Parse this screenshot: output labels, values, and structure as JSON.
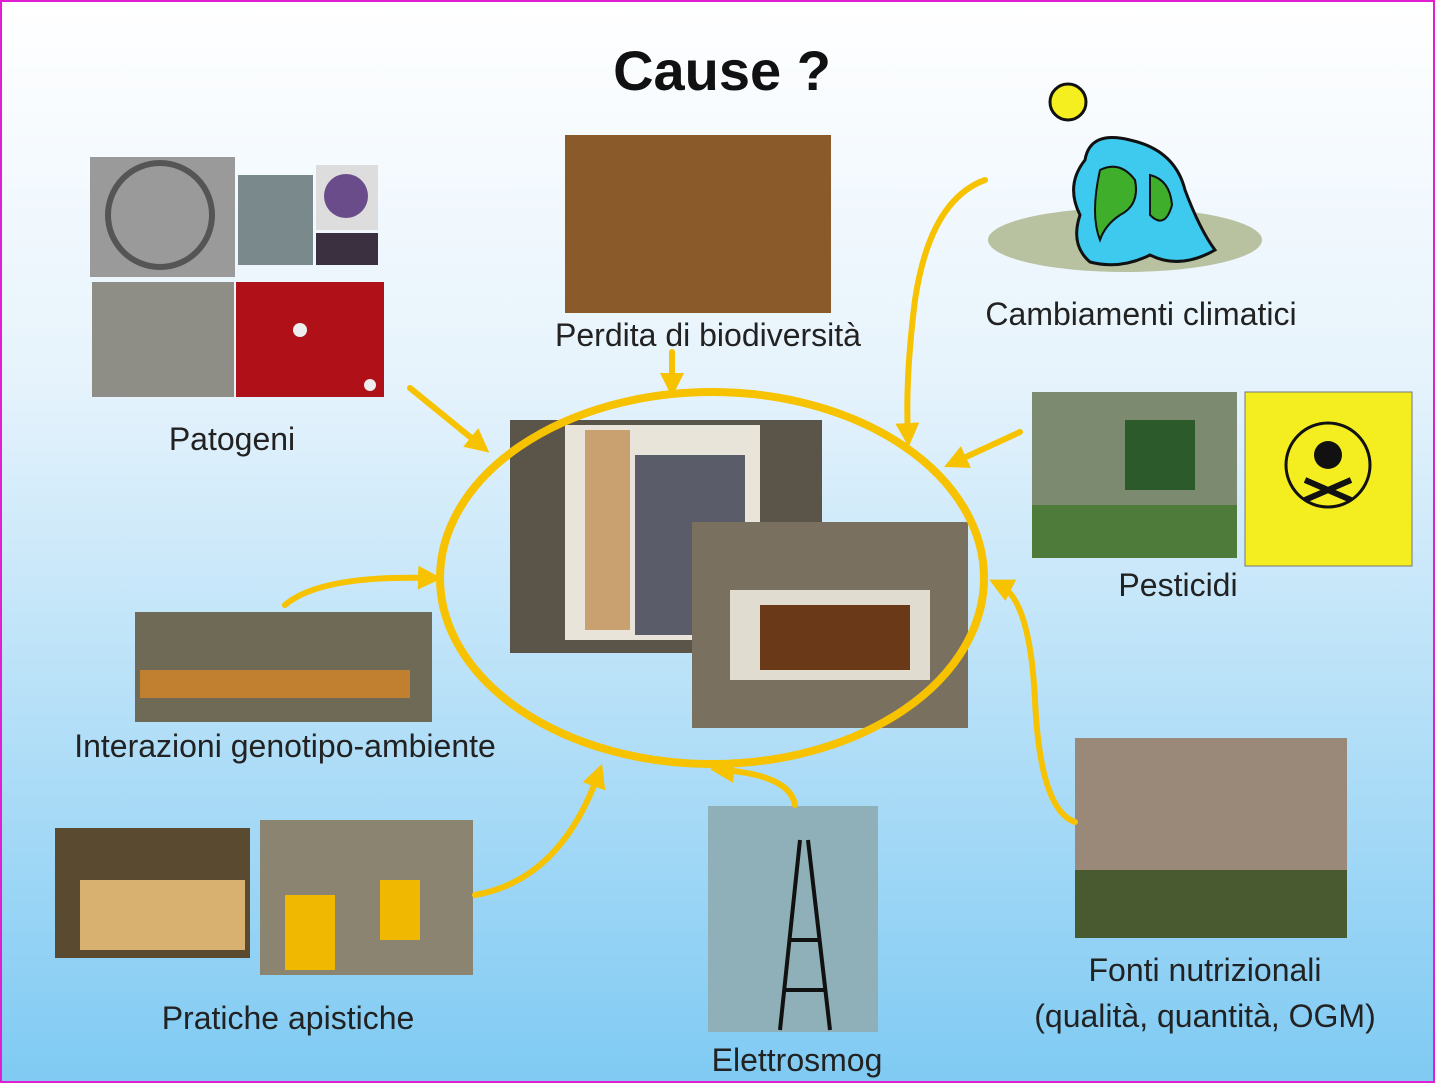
{
  "title": "Cause ?",
  "nodes": [
    {
      "lines": [
        "Patogeni"
      ]
    },
    {
      "lines": [
        "Perdita di biodiversità"
      ]
    },
    {
      "lines": [
        "Cambiamenti climatici"
      ]
    },
    {
      "lines": [
        "Pesticidi"
      ]
    },
    {
      "lines": [
        "Interazioni genotipo-ambiente"
      ]
    },
    {
      "lines": [
        "Pratiche apistiche"
      ]
    },
    {
      "lines": [
        "Elettrosmog"
      ]
    },
    {
      "lines": [
        "Fonti nutrizionali",
        "(qualità, quantità, OGM)"
      ]
    }
  ]
}
